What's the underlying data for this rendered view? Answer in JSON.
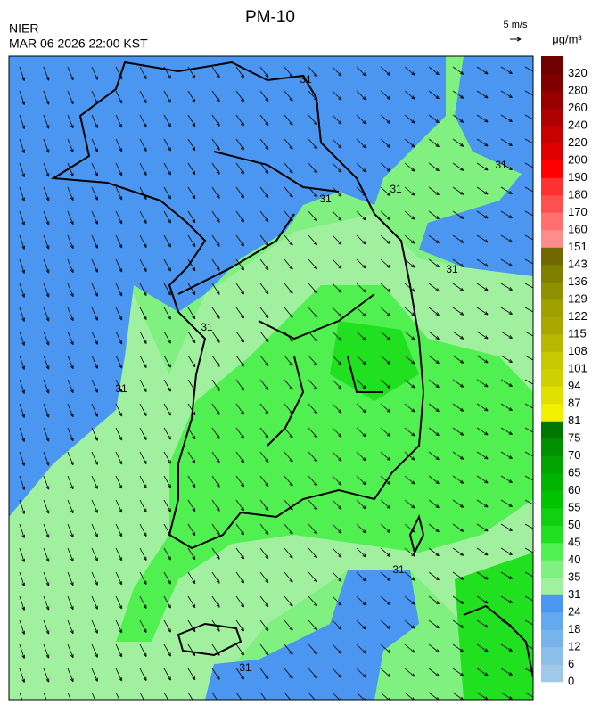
{
  "header": {
    "title": "PM-10",
    "agency": "NIER",
    "datetime": "MAR 06 2026 22:00 KST",
    "wind_scale": "5 m/s"
  },
  "colorbar": {
    "unit": "μg/m³",
    "labels": [
      0,
      6,
      12,
      18,
      24,
      31,
      35,
      40,
      45,
      50,
      55,
      60,
      65,
      70,
      75,
      81,
      87,
      94,
      101,
      108,
      115,
      122,
      129,
      136,
      143,
      151,
      160,
      170,
      180,
      190,
      200,
      220,
      240,
      260,
      280,
      320
    ],
    "colors": [
      "#a0c8e8",
      "#8cbfea",
      "#78b4ec",
      "#64a8f0",
      "#4a96f0",
      "#a0f0a0",
      "#80f080",
      "#50f050",
      "#20e020",
      "#10d010",
      "#00c400",
      "#00b400",
      "#00a400",
      "#009000",
      "#007800",
      "#f0f000",
      "#e0e000",
      "#d0d000",
      "#c8c800",
      "#b8b800",
      "#a8a800",
      "#a0a000",
      "#909000",
      "#808000",
      "#706800",
      "#ff8c8c",
      "#ff7070",
      "#ff5050",
      "#ff3030",
      "#ff0000",
      "#e00000",
      "#c80000",
      "#b00000",
      "#980000",
      "#800000",
      "#700000"
    ]
  },
  "map": {
    "contour_labels": [
      "31",
      "31",
      "31",
      "31",
      "31",
      "31",
      "31",
      "31",
      "31"
    ]
  }
}
